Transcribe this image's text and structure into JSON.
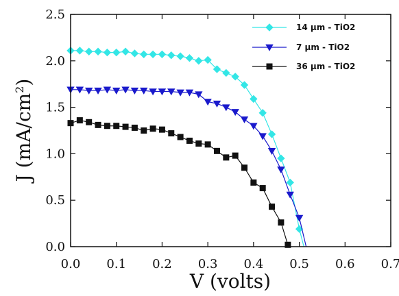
{
  "chart_data": {
    "type": "line",
    "xlabel": "V (volts)",
    "ylabel_main": "J (mA/cm",
    "ylabel_sup": "2",
    "ylabel_close": ")",
    "xlim": [
      0.0,
      0.7
    ],
    "ylim": [
      0.0,
      2.5
    ],
    "xticks": [
      "0.0",
      "0.1",
      "0.2",
      "0.3",
      "0.4",
      "0.5",
      "0.6",
      "0.7"
    ],
    "yticks": [
      "0.0",
      "0.5",
      "1.0",
      "1.5",
      "2.0",
      "2.5"
    ],
    "grid": false,
    "legend_position": "top-right",
    "series": [
      {
        "name": "14 µm - TiO2",
        "color": "#33e6e6",
        "marker": "diamond",
        "points": [
          [
            0.0,
            2.11
          ],
          [
            0.02,
            2.11
          ],
          [
            0.04,
            2.1
          ],
          [
            0.06,
            2.1
          ],
          [
            0.08,
            2.09
          ],
          [
            0.1,
            2.09
          ],
          [
            0.12,
            2.1
          ],
          [
            0.14,
            2.08
          ],
          [
            0.16,
            2.07
          ],
          [
            0.18,
            2.07
          ],
          [
            0.2,
            2.07
          ],
          [
            0.22,
            2.06
          ],
          [
            0.24,
            2.05
          ],
          [
            0.26,
            2.03
          ],
          [
            0.28,
            2.0
          ],
          [
            0.3,
            2.01
          ],
          [
            0.32,
            1.91
          ],
          [
            0.34,
            1.87
          ],
          [
            0.36,
            1.83
          ],
          [
            0.38,
            1.74
          ],
          [
            0.4,
            1.59
          ],
          [
            0.42,
            1.44
          ],
          [
            0.44,
            1.21
          ],
          [
            0.46,
            0.95
          ],
          [
            0.48,
            0.69
          ],
          [
            0.5,
            0.19
          ]
        ]
      },
      {
        "name": "7 µm - TiO2",
        "color": "#1a1acc",
        "marker": "triangle-down",
        "points": [
          [
            0.0,
            1.69
          ],
          [
            0.02,
            1.69
          ],
          [
            0.04,
            1.68
          ],
          [
            0.06,
            1.68
          ],
          [
            0.08,
            1.69
          ],
          [
            0.1,
            1.68
          ],
          [
            0.12,
            1.69
          ],
          [
            0.14,
            1.68
          ],
          [
            0.16,
            1.68
          ],
          [
            0.18,
            1.67
          ],
          [
            0.2,
            1.67
          ],
          [
            0.22,
            1.67
          ],
          [
            0.24,
            1.66
          ],
          [
            0.26,
            1.66
          ],
          [
            0.28,
            1.64
          ],
          [
            0.3,
            1.56
          ],
          [
            0.32,
            1.54
          ],
          [
            0.34,
            1.5
          ],
          [
            0.36,
            1.45
          ],
          [
            0.38,
            1.37
          ],
          [
            0.4,
            1.3
          ],
          [
            0.42,
            1.19
          ],
          [
            0.44,
            1.03
          ],
          [
            0.46,
            0.83
          ],
          [
            0.48,
            0.56
          ],
          [
            0.5,
            0.31
          ]
        ]
      },
      {
        "name": "36 µm - TiO2",
        "color": "#111111",
        "marker": "square",
        "points": [
          [
            0.0,
            1.33
          ],
          [
            0.02,
            1.36
          ],
          [
            0.04,
            1.34
          ],
          [
            0.06,
            1.31
          ],
          [
            0.08,
            1.3
          ],
          [
            0.1,
            1.3
          ],
          [
            0.12,
            1.29
          ],
          [
            0.14,
            1.28
          ],
          [
            0.16,
            1.25
          ],
          [
            0.18,
            1.27
          ],
          [
            0.2,
            1.26
          ],
          [
            0.22,
            1.22
          ],
          [
            0.24,
            1.18
          ],
          [
            0.26,
            1.14
          ],
          [
            0.28,
            1.11
          ],
          [
            0.3,
            1.1
          ],
          [
            0.32,
            1.03
          ],
          [
            0.34,
            0.96
          ],
          [
            0.36,
            0.98
          ],
          [
            0.38,
            0.85
          ],
          [
            0.4,
            0.69
          ],
          [
            0.42,
            0.63
          ],
          [
            0.44,
            0.43
          ],
          [
            0.46,
            0.26
          ],
          [
            0.475,
            0.02
          ]
        ]
      }
    ],
    "curve_ends": [
      {
        "series": 0,
        "x": 0.51,
        "y": 0.0
      },
      {
        "series": 1,
        "x": 0.515,
        "y": 0.0
      },
      {
        "series": 2,
        "x": 0.48,
        "y": 0.0
      }
    ]
  }
}
